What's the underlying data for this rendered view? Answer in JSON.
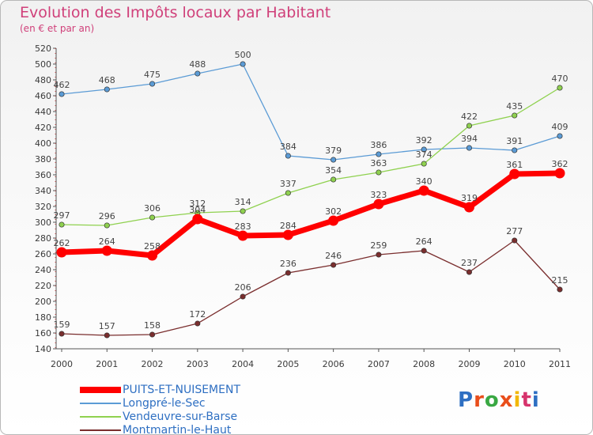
{
  "title": "Evolution des Impôts locaux par Habitant",
  "subtitle": "(en € et par an)",
  "brand": {
    "text": "Proxiti",
    "colors": [
      "#2e6fc2",
      "#e94e1b",
      "#39a843",
      "#e94e1b",
      "#f2b705",
      "#d6336c",
      "#2e6fc2"
    ]
  },
  "chart_data": {
    "type": "line",
    "x": [
      2000,
      2001,
      2002,
      2003,
      2004,
      2005,
      2006,
      2007,
      2008,
      2009,
      2010,
      2011
    ],
    "ylim": [
      140,
      520
    ],
    "ytick_step": 20,
    "grid": false,
    "legend_position": "bottom-left",
    "series": [
      {
        "name": "PUITS-ET-NUISEMENT",
        "color": "#ff0000",
        "values": [
          262,
          264,
          258,
          304,
          283,
          284,
          302,
          323,
          340,
          319,
          361,
          362
        ]
      },
      {
        "name": "Longpré-le-Sec",
        "color": "#5b9bd5",
        "values": [
          462,
          468,
          475,
          488,
          500,
          384,
          379,
          386,
          392,
          394,
          391,
          409
        ]
      },
      {
        "name": "Vendeuvre-sur-Barse",
        "color": "#8fd14f",
        "values": [
          297,
          296,
          306,
          312,
          314,
          337,
          354,
          363,
          374,
          422,
          435,
          470
        ]
      },
      {
        "name": "Montmartin-le-Haut",
        "color": "#7a2e2e",
        "values": [
          159,
          157,
          158,
          172,
          206,
          236,
          246,
          259,
          264,
          237,
          277,
          215
        ]
      }
    ]
  }
}
